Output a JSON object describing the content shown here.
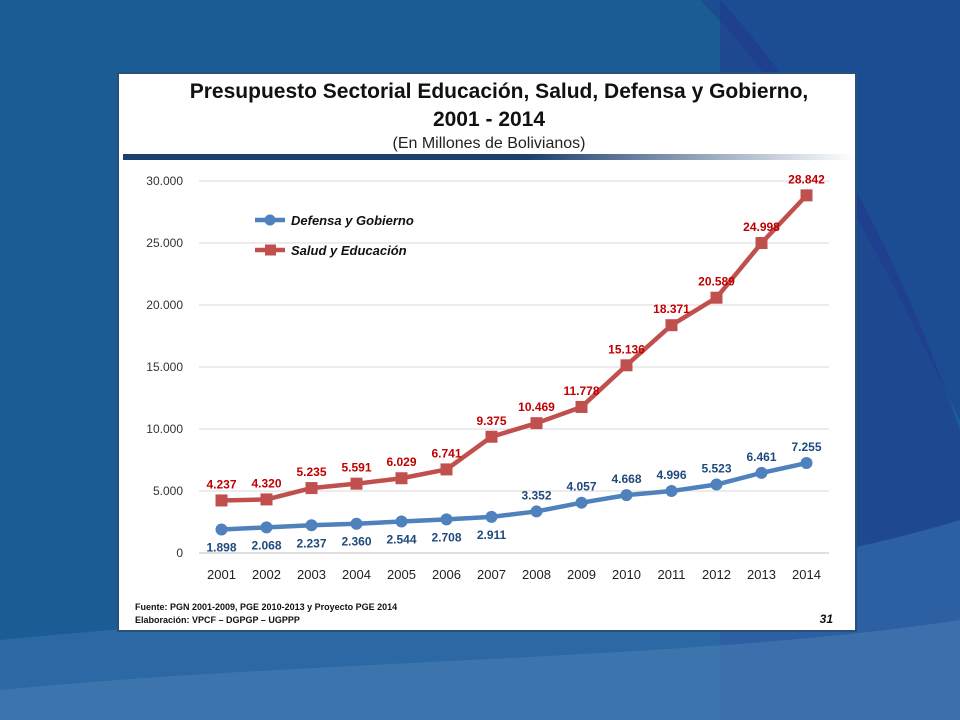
{
  "slide": {
    "title_line1": "Presupuesto Sectorial Educación, Salud, Defensa y Gobierno,",
    "title_line2": "2001 - 2014",
    "subtitle": "(En Millones de Bolivianos)",
    "source_line1": "Fuente: PGN 2001-2009, PGE 2010-2013 y Proyecto PGE 2014",
    "source_line2": "Elaboración: VPCF – DGPGP – UGPPP",
    "page_number": "31"
  },
  "colors": {
    "background": "#1b5c95",
    "blue_series": "#4f81bd",
    "red_series": "#c0504d",
    "blue_label": "#1f497d",
    "red_label": "#c00000"
  },
  "chart_data": {
    "type": "line",
    "x": [
      "2001",
      "2002",
      "2003",
      "2004",
      "2005",
      "2006",
      "2007",
      "2008",
      "2009",
      "2010",
      "2011",
      "2012",
      "2013",
      "2014"
    ],
    "ylim": [
      0,
      30000
    ],
    "yticks": [
      0,
      5000,
      10000,
      15000,
      20000,
      25000,
      30000
    ],
    "ytick_labels": [
      "0",
      "5.000",
      "10.000",
      "15.000",
      "20.000",
      "25.000",
      "30.000"
    ],
    "grid": true,
    "legend": "top-left",
    "series": [
      {
        "name": "Defensa y Gobierno",
        "marker": "circle",
        "values": [
          1898,
          2068,
          2237,
          2360,
          2544,
          2708,
          2911,
          3352,
          4057,
          4668,
          4996,
          5523,
          6461,
          7255
        ],
        "labels": [
          "1.898",
          "2.068",
          "2.237",
          "2.360",
          "2.544",
          "2.708",
          "2.911",
          "3.352",
          "4.057",
          "4.668",
          "4.996",
          "5.523",
          "6.461",
          "7.255"
        ]
      },
      {
        "name": "Salud y Educación",
        "marker": "square",
        "values": [
          4237,
          4320,
          5235,
          5591,
          6029,
          6741,
          9375,
          10469,
          11778,
          15136,
          18371,
          20589,
          24998,
          28842
        ],
        "labels": [
          "4.237",
          "4.320",
          "5.235",
          "5.591",
          "6.029",
          "6.741",
          "9.375",
          "10.469",
          "11.778",
          "15.136",
          "18.371",
          "20.589",
          "24.998",
          "28.842"
        ]
      }
    ]
  }
}
